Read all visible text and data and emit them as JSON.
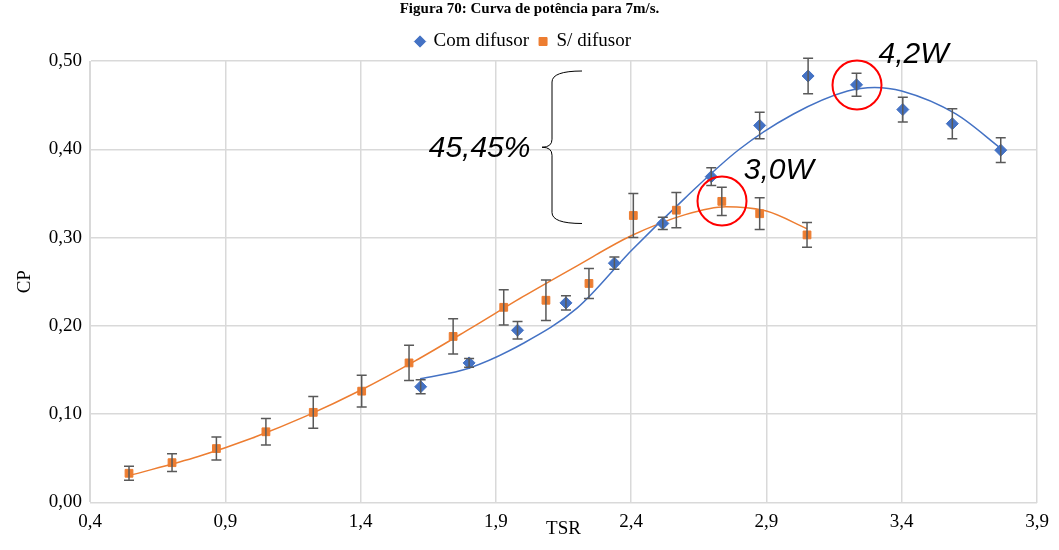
{
  "chart_data": {
    "type": "scatter",
    "title": "Figura 70: Curva de potência para 7m/s.",
    "xlabel": "TSR",
    "ylabel": "CP",
    "xlim": [
      0.4,
      3.9
    ],
    "xticks": [
      {
        "value": 0.4,
        "label": "0,4"
      },
      {
        "value": 0.9,
        "label": "0,9"
      },
      {
        "value": 1.4,
        "label": "1,4"
      },
      {
        "value": 1.9,
        "label": "1,9"
      },
      {
        "value": 2.4,
        "label": "2,4"
      },
      {
        "value": 2.9,
        "label": "2,9"
      },
      {
        "value": 3.4,
        "label": "3,4"
      },
      {
        "value": 3.9,
        "label": "3,9"
      }
    ],
    "ylim": [
      0,
      0.5
    ],
    "yticks": [
      {
        "value": 0,
        "label": "0,00"
      },
      {
        "value": 0.1,
        "label": "0,10"
      },
      {
        "value": 0.2,
        "label": "0,20"
      },
      {
        "value": 0.3,
        "label": "0,30"
      },
      {
        "value": 0.4,
        "label": "0,40"
      },
      {
        "value": 0.5,
        "label": "0,50"
      }
    ],
    "grid": true,
    "legend": "top",
    "series": [
      {
        "name": "Com difusor",
        "marker": "diamond",
        "color": "#4472c4",
        "x": [
          1.622,
          1.801,
          1.98,
          2.159,
          2.338,
          2.517,
          2.696,
          2.875,
          3.054,
          3.233,
          3.404,
          3.587,
          3.766
        ],
        "values": [
          0.131,
          0.158,
          0.195,
          0.226,
          0.271,
          0.316,
          0.369,
          0.427,
          0.483,
          0.473,
          0.445,
          0.429,
          0.399
        ],
        "errors": [
          0.008,
          0.005,
          0.01,
          0.008,
          0.007,
          0.007,
          0.01,
          0.015,
          0.02,
          0.013,
          0.014,
          0.017,
          0.014
        ]
      },
      {
        "name": "S/ difusor",
        "marker": "square",
        "color": "#ed7d31",
        "x": [
          0.544,
          0.703,
          0.867,
          1.05,
          1.225,
          1.404,
          1.579,
          1.742,
          1.929,
          2.085,
          2.244,
          2.408,
          2.567,
          2.735,
          2.875,
          3.05
        ],
        "values": [
          0.033,
          0.045,
          0.061,
          0.08,
          0.102,
          0.126,
          0.158,
          0.188,
          0.221,
          0.229,
          0.248,
          0.325,
          0.331,
          0.341,
          0.327,
          0.303
        ],
        "errors": [
          0.008,
          0.01,
          0.013,
          0.015,
          0.018,
          0.018,
          0.02,
          0.02,
          0.02,
          0.023,
          0.017,
          0.025,
          0.02,
          0.016,
          0.018,
          0.014
        ]
      },
      {
        "type": "line",
        "marker": "none",
        "color": "#4472c4",
        "x": [
          1.62,
          1.8,
          2.0,
          2.2,
          2.4,
          2.6,
          2.8,
          3.0,
          3.2,
          3.3,
          3.4,
          3.6,
          3.77
        ],
        "values": [
          0.14,
          0.152,
          0.18,
          0.22,
          0.285,
          0.345,
          0.4,
          0.44,
          0.466,
          0.47,
          0.466,
          0.44,
          0.4
        ]
      },
      {
        "type": "line",
        "marker": "none",
        "color": "#ed7d31",
        "x": [
          0.54,
          0.8,
          1.0,
          1.2,
          1.4,
          1.6,
          1.8,
          2.0,
          2.2,
          2.4,
          2.6,
          2.75,
          2.9,
          3.05
        ],
        "values": [
          0.03,
          0.052,
          0.073,
          0.098,
          0.127,
          0.16,
          0.196,
          0.233,
          0.268,
          0.302,
          0.326,
          0.335,
          0.33,
          0.31
        ]
      }
    ],
    "annotations": [
      {
        "text": "4,2W",
        "x": 3.233,
        "y": 0.473
      },
      {
        "text": "3,0W",
        "x": 2.735,
        "y": 0.341
      },
      "45,45%"
    ]
  }
}
